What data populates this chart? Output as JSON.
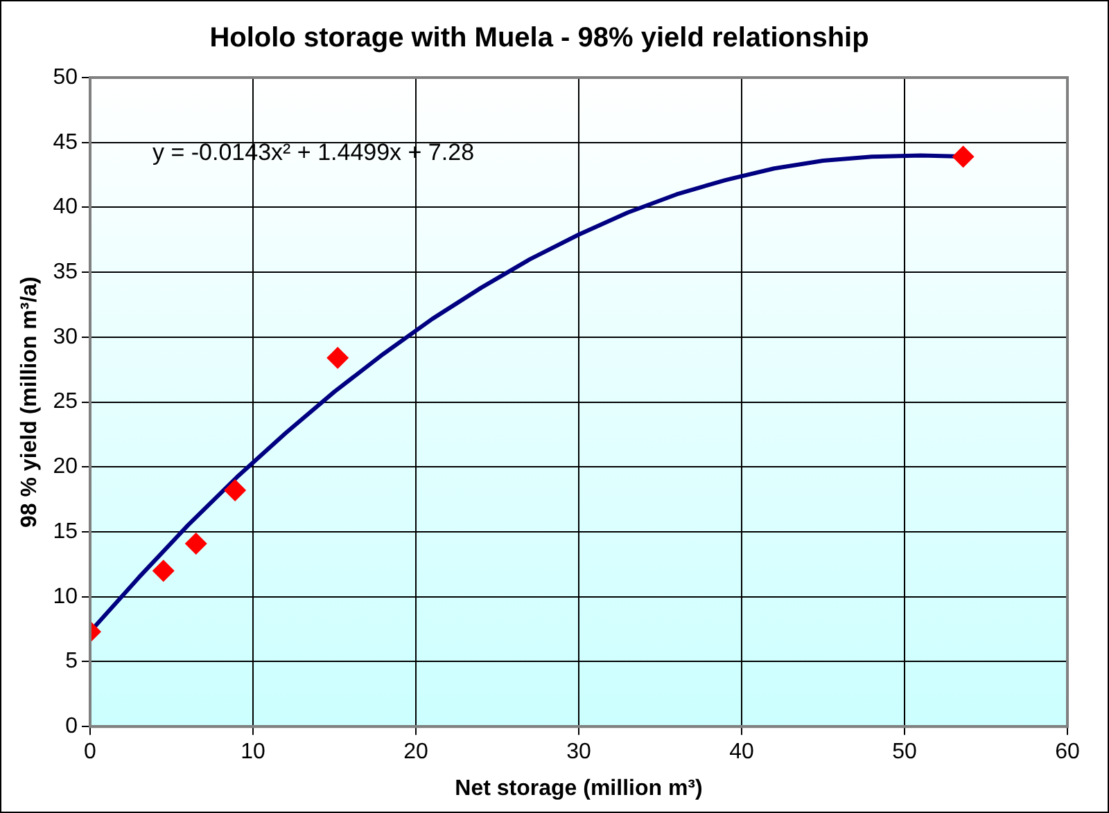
{
  "chart_data": {
    "type": "scatter",
    "title": "Hololo storage with Muela - 98% yield relationship",
    "xlabel": "Net storage (million m³)",
    "ylabel": "98 % yield (million m³/a)",
    "annotations": [
      "y = -0.0143x² + 1.4499x + 7.28"
    ],
    "xlim": [
      0,
      60
    ],
    "xticks": [
      0,
      10,
      20,
      30,
      40,
      50,
      60
    ],
    "ylim": [
      0,
      50
    ],
    "yticks": [
      0,
      5,
      10,
      15,
      20,
      25,
      30,
      35,
      40,
      45,
      50
    ],
    "grid": true,
    "series": [
      {
        "type": "line",
        "color": "#000080",
        "marker": "none",
        "line_style": "solid",
        "x": [
          0,
          3,
          6,
          9,
          12,
          15,
          18,
          21,
          24,
          27,
          30,
          33,
          36,
          39,
          42,
          45,
          48,
          51,
          54
        ],
        "values": [
          7.3,
          11.5,
          15.5,
          19.2,
          22.6,
          25.8,
          28.7,
          31.4,
          33.8,
          36.0,
          37.9,
          39.6,
          41.0,
          42.1,
          43.0,
          43.6,
          43.9,
          44.0,
          43.9
        ]
      },
      {
        "type": "scatter",
        "color": "#ff0000",
        "marker": "diamond",
        "x": [
          0,
          4.5,
          6.5,
          8.9,
          15.2,
          53.6
        ],
        "values": [
          7.3,
          12.0,
          14.1,
          18.2,
          28.4,
          43.9
        ]
      }
    ]
  }
}
